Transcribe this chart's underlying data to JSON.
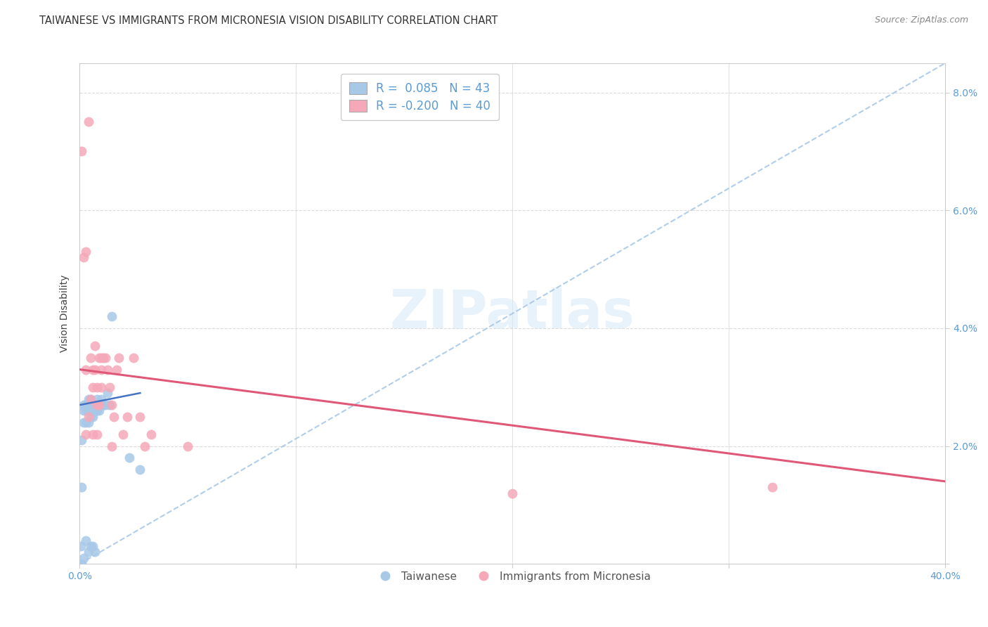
{
  "title": "TAIWANESE VS IMMIGRANTS FROM MICRONESIA VISION DISABILITY CORRELATION CHART",
  "source": "Source: ZipAtlas.com",
  "ylabel": "Vision Disability",
  "watermark": "ZIPatlas",
  "xlim": [
    0.0,
    0.4
  ],
  "ylim": [
    0.0,
    0.085
  ],
  "xticks": [
    0.0,
    0.1,
    0.2,
    0.3,
    0.4
  ],
  "xtick_labels_show": [
    "0.0%",
    "",
    "",
    "",
    "40.0%"
  ],
  "yticks": [
    0.0,
    0.02,
    0.04,
    0.06,
    0.08
  ],
  "ytick_labels": [
    "",
    "2.0%",
    "4.0%",
    "6.0%",
    "8.0%"
  ],
  "blue_R": "0.085",
  "blue_N": 43,
  "pink_R": "-0.200",
  "pink_N": 40,
  "blue_color": "#a8c8e8",
  "pink_color": "#f5a8b8",
  "blue_line_color": "#4472c4",
  "pink_line_color": "#e05878",
  "diag_line_color": "#a8c8e8",
  "title_fontsize": 10.5,
  "axis_label_fontsize": 10,
  "tick_fontsize": 10,
  "legend_fontsize": 12,
  "blue_scatter_x": [
    0.0005,
    0.001,
    0.001,
    0.001,
    0.002,
    0.002,
    0.002,
    0.002,
    0.003,
    0.003,
    0.003,
    0.003,
    0.004,
    0.004,
    0.004,
    0.004,
    0.004,
    0.005,
    0.005,
    0.005,
    0.005,
    0.005,
    0.006,
    0.006,
    0.006,
    0.006,
    0.007,
    0.007,
    0.007,
    0.008,
    0.008,
    0.008,
    0.009,
    0.009,
    0.01,
    0.01,
    0.011,
    0.012,
    0.013,
    0.014,
    0.015,
    0.023,
    0.028
  ],
  "blue_scatter_y": [
    0.003,
    0.0,
    0.013,
    0.021,
    0.024,
    0.026,
    0.027,
    0.001,
    0.024,
    0.026,
    0.027,
    0.004,
    0.024,
    0.026,
    0.027,
    0.028,
    0.002,
    0.025,
    0.026,
    0.027,
    0.028,
    0.003,
    0.025,
    0.026,
    0.027,
    0.003,
    0.026,
    0.027,
    0.002,
    0.026,
    0.027,
    0.028,
    0.026,
    0.027,
    0.027,
    0.028,
    0.027,
    0.027,
    0.029,
    0.027,
    0.042,
    0.018,
    0.016
  ],
  "pink_scatter_x": [
    0.001,
    0.002,
    0.003,
    0.003,
    0.004,
    0.004,
    0.005,
    0.005,
    0.006,
    0.006,
    0.007,
    0.007,
    0.008,
    0.008,
    0.008,
    0.009,
    0.009,
    0.01,
    0.01,
    0.011,
    0.012,
    0.013,
    0.014,
    0.015,
    0.015,
    0.016,
    0.017,
    0.018,
    0.02,
    0.022,
    0.025,
    0.028,
    0.03,
    0.033,
    0.05,
    0.003,
    0.006,
    0.01,
    0.2,
    0.32
  ],
  "pink_scatter_y": [
    0.07,
    0.052,
    0.053,
    0.022,
    0.075,
    0.025,
    0.028,
    0.035,
    0.033,
    0.03,
    0.037,
    0.033,
    0.03,
    0.027,
    0.022,
    0.035,
    0.027,
    0.035,
    0.03,
    0.035,
    0.035,
    0.033,
    0.03,
    0.027,
    0.02,
    0.025,
    0.033,
    0.035,
    0.022,
    0.025,
    0.035,
    0.025,
    0.02,
    0.022,
    0.02,
    0.033,
    0.022,
    0.033,
    0.012,
    0.013
  ],
  "pink_line_x": [
    0.0,
    0.4
  ],
  "pink_line_y": [
    0.033,
    0.014
  ],
  "blue_line_x": [
    0.0005,
    0.028
  ],
  "blue_line_y": [
    0.027,
    0.029
  ]
}
